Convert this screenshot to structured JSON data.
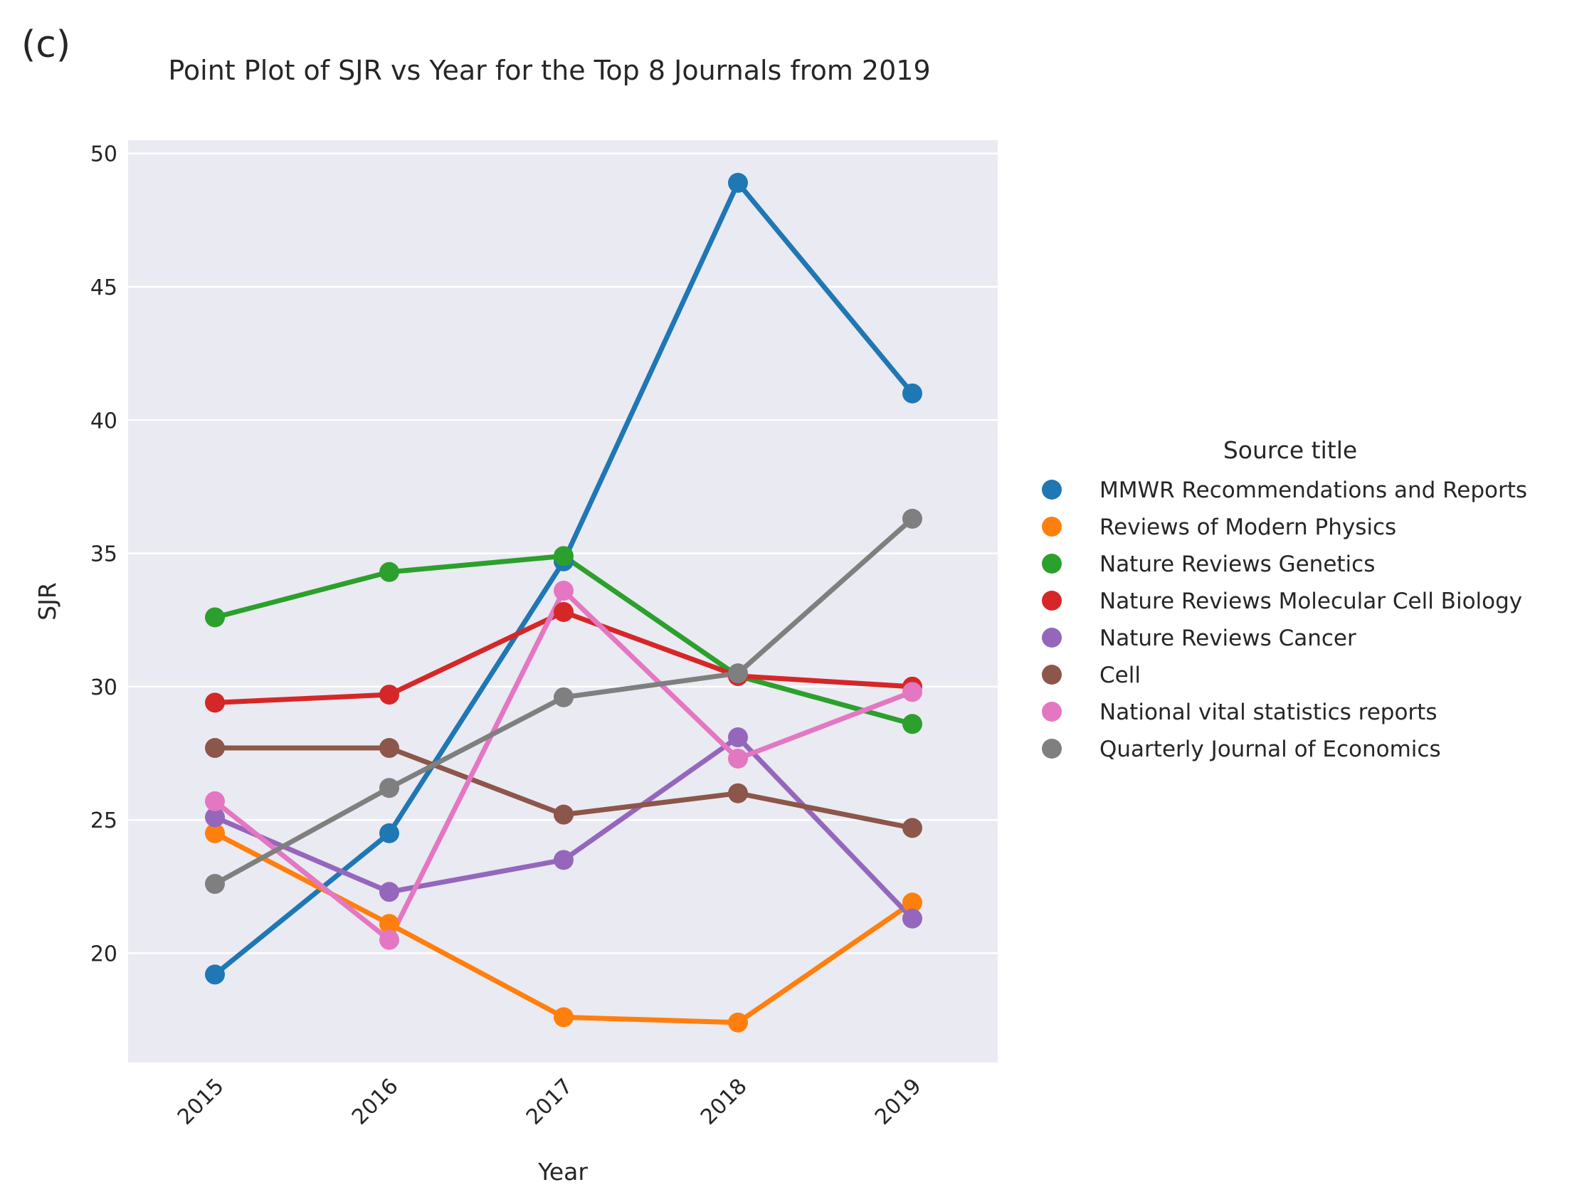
{
  "panel_label": "(c)",
  "chart_data": {
    "type": "line",
    "title": "Point Plot of SJR vs Year for the Top 8 Journals from 2019",
    "xlabel": "Year",
    "ylabel": "SJR",
    "categories": [
      "2015",
      "2016",
      "2017",
      "2018",
      "2019"
    ],
    "ylim": [
      15.9,
      50.5
    ],
    "yticks": [
      20,
      25,
      30,
      35,
      40,
      45,
      50
    ],
    "grid": true,
    "legend": {
      "title": "Source title",
      "placement": "right"
    },
    "series": [
      {
        "name": "MMWR Recommendations and Reports",
        "color": "#1f77b4",
        "values": [
          19.2,
          24.5,
          34.7,
          48.9,
          41.0
        ]
      },
      {
        "name": "Reviews of Modern Physics",
        "color": "#ff7f0e",
        "values": [
          24.5,
          21.1,
          17.6,
          17.4,
          21.9
        ]
      },
      {
        "name": "Nature Reviews Genetics",
        "color": "#2ca02c",
        "values": [
          32.6,
          34.3,
          34.9,
          30.4,
          28.6
        ]
      },
      {
        "name": "Nature Reviews Molecular Cell Biology",
        "color": "#d62728",
        "values": [
          29.4,
          29.7,
          32.8,
          30.4,
          30.0
        ]
      },
      {
        "name": "Nature Reviews Cancer",
        "color": "#9467bd",
        "values": [
          25.1,
          22.3,
          23.5,
          28.1,
          21.3
        ]
      },
      {
        "name": "Cell",
        "color": "#8c564b",
        "values": [
          27.7,
          27.7,
          25.2,
          26.0,
          24.7
        ]
      },
      {
        "name": "National vital statistics reports",
        "color": "#e377c2",
        "values": [
          25.7,
          20.5,
          33.6,
          27.3,
          29.8
        ]
      },
      {
        "name": "Quarterly Journal of Economics",
        "color": "#7f7f7f",
        "values": [
          22.6,
          26.2,
          29.6,
          30.5,
          36.3
        ]
      }
    ]
  }
}
